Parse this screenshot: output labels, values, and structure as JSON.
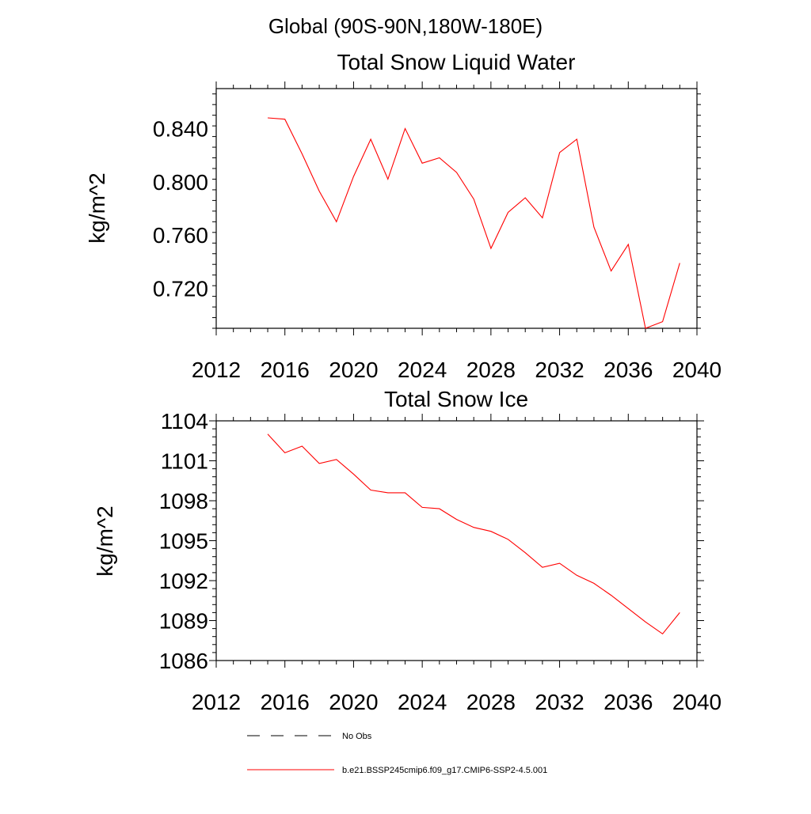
{
  "header": {
    "region": "Global (90S-90N,180W-180E)"
  },
  "chart_data": [
    {
      "type": "line",
      "title": "Total Snow Liquid Water",
      "ylabel": "kg/m^2",
      "xlim": [
        2012,
        2040
      ],
      "ylim": [
        0.69,
        0.87
      ],
      "x_ticks": [
        2012,
        2016,
        2020,
        2024,
        2028,
        2032,
        2036,
        2040
      ],
      "x_tick_labels": [
        "2012",
        "2016",
        "2020",
        "2024",
        "2028",
        "2032",
        "2036",
        "2040"
      ],
      "y_ticks": [
        0.72,
        0.76,
        0.8,
        0.84
      ],
      "y_tick_labels": [
        "0.720",
        "0.760",
        "0.800",
        "0.840"
      ],
      "grid": false,
      "series": [
        {
          "name": "b.e21.BSSP245cmip6.f09_g17.CMIP6-SSP2-4.5.001",
          "color": "#ff0000",
          "x": [
            2015,
            2016,
            2017,
            2018,
            2019,
            2020,
            2021,
            2022,
            2023,
            2024,
            2025,
            2026,
            2027,
            2028,
            2029,
            2030,
            2031,
            2032,
            2033,
            2034,
            2035,
            2036,
            2037,
            2038,
            2039
          ],
          "y": [
            0.848,
            0.847,
            0.821,
            0.793,
            0.77,
            0.804,
            0.832,
            0.802,
            0.84,
            0.814,
            0.818,
            0.807,
            0.787,
            0.75,
            0.777,
            0.788,
            0.773,
            0.822,
            0.832,
            0.766,
            0.733,
            0.753,
            0.69,
            0.695,
            0.739
          ]
        }
      ]
    },
    {
      "type": "line",
      "title": "Total Snow Ice",
      "ylabel": "kg/m^2",
      "xlim": [
        2012,
        2040
      ],
      "ylim": [
        1086,
        1104
      ],
      "x_ticks": [
        2012,
        2016,
        2020,
        2024,
        2028,
        2032,
        2036,
        2040
      ],
      "x_tick_labels": [
        "2012",
        "2016",
        "2020",
        "2024",
        "2028",
        "2032",
        "2036",
        "2040"
      ],
      "y_ticks": [
        1086,
        1089,
        1092,
        1095,
        1098,
        1101,
        1104
      ],
      "y_tick_labels": [
        "1086",
        "1089",
        "1092",
        "1095",
        "1098",
        "1101",
        "1104"
      ],
      "grid": false,
      "series": [
        {
          "name": "b.e21.BSSP245cmip6.f09_g17.CMIP6-SSP2-4.5.001",
          "color": "#ff0000",
          "x": [
            2015,
            2016,
            2017,
            2018,
            2019,
            2020,
            2021,
            2022,
            2023,
            2024,
            2025,
            2026,
            2027,
            2028,
            2029,
            2030,
            2031,
            2032,
            2033,
            2034,
            2035,
            2036,
            2037,
            2038,
            2039
          ],
          "y": [
            1103.0,
            1101.6,
            1102.1,
            1100.8,
            1101.1,
            1100.0,
            1098.8,
            1098.6,
            1098.6,
            1097.5,
            1097.4,
            1096.6,
            1096.0,
            1095.7,
            1095.1,
            1094.1,
            1093.0,
            1093.3,
            1092.4,
            1091.8,
            1090.9,
            1089.9,
            1088.9,
            1088.0,
            1089.6
          ]
        }
      ]
    }
  ],
  "legend": {
    "placement": "bottom",
    "items": [
      {
        "label": "No Obs",
        "style": "dashed",
        "color": "#000000"
      },
      {
        "label": "b.e21.BSSP245cmip6.f09_g17.CMIP6-SSP2-4.5.001",
        "style": "solid",
        "color": "#ff0000"
      }
    ]
  }
}
